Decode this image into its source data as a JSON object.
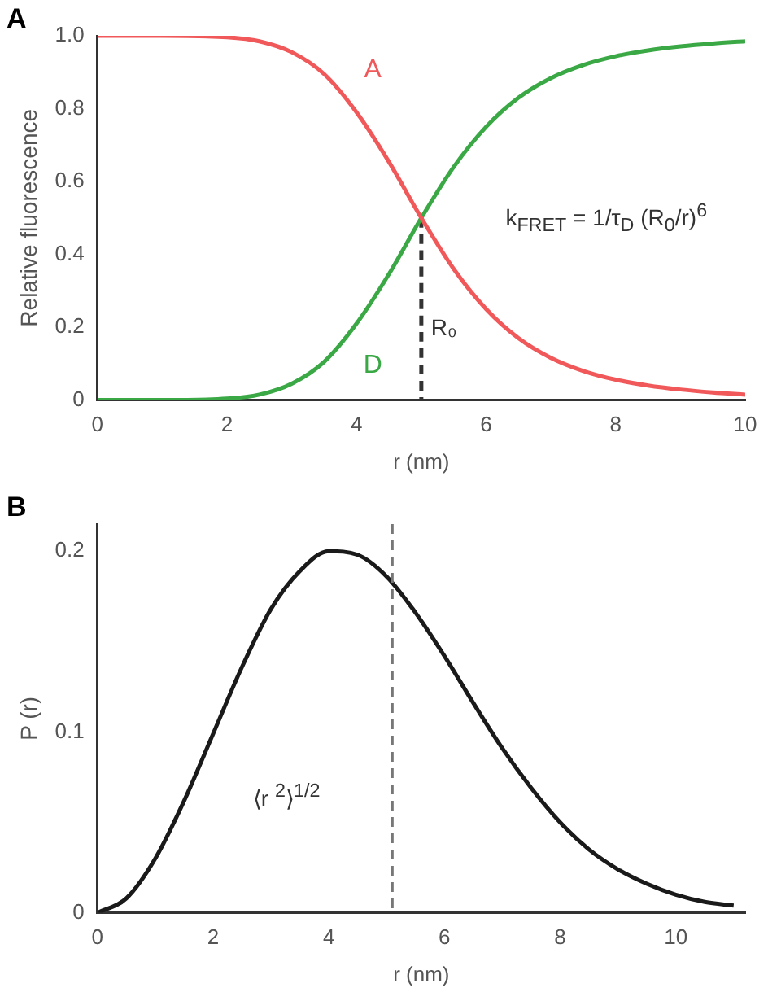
{
  "chart_data": [
    {
      "type": "line",
      "title": "A",
      "xlabel": "r (nm)",
      "ylabel": "Relative fluorescence",
      "x": [
        0,
        1,
        2,
        2.5,
        3,
        3.5,
        4,
        4.5,
        5,
        5.5,
        6,
        6.5,
        7,
        7.5,
        8,
        8.5,
        9,
        9.5,
        10
      ],
      "series": [
        {
          "name": "A",
          "color": "#f0585a",
          "values": [
            1,
            1,
            0.996,
            0.985,
            0.955,
            0.895,
            0.79,
            0.654,
            0.5,
            0.36,
            0.25,
            0.17,
            0.116,
            0.08,
            0.056,
            0.04,
            0.029,
            0.021,
            0.015
          ]
        },
        {
          "name": "D",
          "color": "#3aa845",
          "values": [
            0,
            0,
            0.004,
            0.015,
            0.045,
            0.105,
            0.21,
            0.346,
            0.5,
            0.64,
            0.75,
            0.83,
            0.884,
            0.92,
            0.944,
            0.96,
            0.971,
            0.979,
            0.985
          ]
        },
        {
          "type": "line",
          "color": "#333333",
          "line_style": "dashed",
          "x": [
            5,
            5
          ],
          "values": [
            0.5,
            0
          ]
        }
      ],
      "xlim": [
        0,
        10
      ],
      "xticks": [
        0,
        2,
        4,
        6,
        8,
        10
      ],
      "ylim": [
        0,
        1
      ],
      "yticks": [
        {
          "value": 0,
          "label": "0"
        },
        0.2,
        0.4,
        0.6,
        0.8,
        {
          "value": 1,
          "label": "1.0"
        }
      ],
      "annotations": [
        "R₀",
        "k$_{FRET}$ = 1/τ$_{D}$ (R$_{0}$/r)$^{6}$"
      ],
      "marker": "none",
      "line_style": "solid",
      "grid": false,
      "legend": false
    },
    {
      "type": "line",
      "title": "B",
      "xlabel": "r (nm)",
      "ylabel": "P (r)",
      "x": [
        0,
        0.5,
        1,
        1.5,
        2,
        2.5,
        3,
        3.5,
        4,
        4.5,
        5,
        5.5,
        6,
        6.5,
        7,
        7.5,
        8,
        8.5,
        9,
        9.5,
        10,
        10.5,
        11
      ],
      "series": [
        {
          "color": "#1a1a1a",
          "values": [
            0,
            0.008,
            0.03,
            0.062,
            0.099,
            0.136,
            0.168,
            0.189,
            0.2,
            0.198,
            0.186,
            0.166,
            0.142,
            0.116,
            0.091,
            0.069,
            0.05,
            0.035,
            0.024,
            0.016,
            0.01,
            0.006,
            0.004
          ]
        }
      ],
      "xlim": [
        0,
        11.2
      ],
      "xticks": [
        0,
        2,
        4,
        6,
        8,
        10
      ],
      "ylim": [
        0,
        0.215
      ],
      "yticks": [
        0,
        0.1,
        0.2
      ],
      "ref_lines": [
        {
          "axis": "x",
          "value": 5.1,
          "color": "#777777",
          "line_style": "dashed"
        }
      ],
      "annotations": [
        "⟨r $^{2}$⟩$^{1/2}$"
      ],
      "marker": "none",
      "line_style": "solid",
      "grid": false,
      "legend": false
    }
  ]
}
